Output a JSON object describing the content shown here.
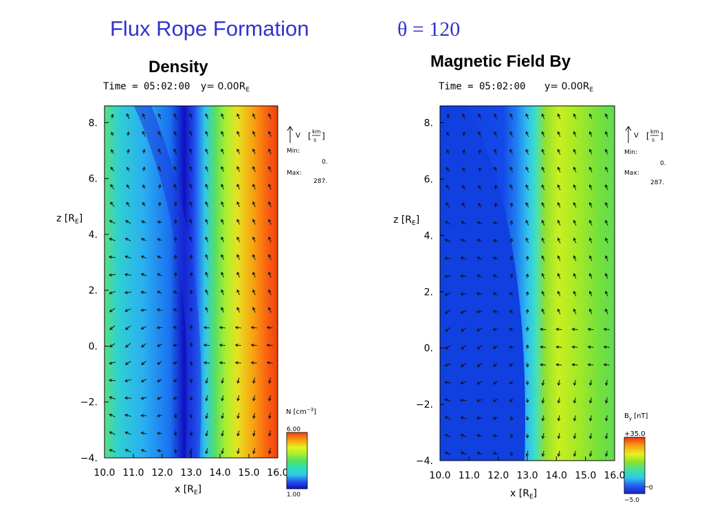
{
  "slide": {
    "title": "Flux Rope Formation",
    "theta_label": "θ = 120"
  },
  "chart_data": [
    {
      "type": "heatmap",
      "heading": "Density",
      "time_label": "Time = 05:02:00",
      "slice_label": "y= 0.00R",
      "slice_subscript": "E",
      "xlabel": "x [R",
      "xlabel_subscript": "E",
      "xlabel_end": "]",
      "ylabel": "z [R",
      "ylabel_subscript": "E",
      "ylabel_end": "]",
      "xlim": [
        10.0,
        16.0
      ],
      "ylim": [
        -4.0,
        8.6
      ],
      "x_ticks": [
        "10.0",
        "11.0",
        "12.0",
        "13.0",
        "14.0",
        "15.0",
        "16.0"
      ],
      "x_tick_values": [
        10,
        11,
        12,
        13,
        14,
        15,
        16
      ],
      "y_ticks": [
        "8.",
        "6.",
        "4.",
        "2.",
        "0.",
        "−2.",
        "−4."
      ],
      "y_tick_values": [
        8,
        6,
        4,
        2,
        0,
        -2,
        -4
      ],
      "vector_legend": {
        "label": "V",
        "units_num": "km",
        "units_den": "s",
        "min_label": "Min:",
        "min_value": "0.",
        "max_label": "Max:",
        "max_value": "287."
      },
      "colorbar": {
        "label": "N [cm",
        "label_sup": "−3",
        "label_end": "]",
        "max_label": "6.00",
        "min_label": "1.00",
        "mid_label": "",
        "min": 1.0,
        "max": 6.0
      },
      "colors": [
        "#1010c0",
        "#2050f0",
        "#1b9af0",
        "#30c8e8",
        "#2ee0b0",
        "#58e060",
        "#a8f030",
        "#e8f020",
        "#f8c010",
        "#f88010",
        "#f04010"
      ]
    },
    {
      "type": "heatmap",
      "heading": "Magnetic Field By",
      "time_label": "Time = 05:02:00",
      "slice_label": "y= 0.00R",
      "slice_subscript": "E",
      "xlabel": "x [R",
      "xlabel_subscript": "E",
      "xlabel_end": "]",
      "ylabel": "z [R",
      "ylabel_subscript": "E",
      "ylabel_end": "]",
      "xlim": [
        10.0,
        16.0
      ],
      "ylim": [
        -4.0,
        8.6
      ],
      "x_ticks": [
        "10.0",
        "11.0",
        "12.0",
        "13.0",
        "14.0",
        "15.0",
        "16.0"
      ],
      "x_tick_values": [
        10,
        11,
        12,
        13,
        14,
        15,
        16
      ],
      "y_ticks": [
        "8.",
        "6.",
        "4.",
        "2.",
        "0.",
        "−2.",
        "−4."
      ],
      "y_tick_values": [
        8,
        6,
        4,
        2,
        0,
        -2,
        -4
      ],
      "vector_legend": {
        "label": "V",
        "units_num": "km",
        "units_den": "s",
        "min_label": "Min:",
        "min_value": "0.",
        "max_label": "Max:",
        "max_value": "287."
      },
      "colorbar": {
        "label": "B",
        "label_sub": "y",
        "label_end": " [nT]",
        "max_label": "+35.0",
        "min_label": "−5.0",
        "mid_label": "0",
        "min": -5.0,
        "max": 35.0
      },
      "colors": [
        "#1040e0",
        "#2080f0",
        "#30b8f0",
        "#40e0c0",
        "#60e060",
        "#90e030",
        "#b8f020",
        "#d8f020"
      ]
    }
  ]
}
